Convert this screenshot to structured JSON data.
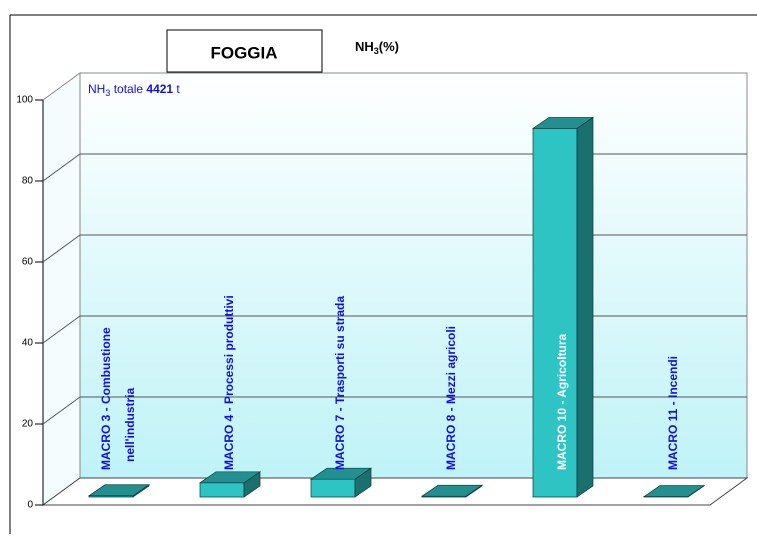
{
  "chart_data": {
    "type": "bar3d",
    "title": "FOGGIA",
    "unit_label": {
      "main": "NH",
      "sub": "3",
      "rest": "(%)"
    },
    "annotation": {
      "main": "NH",
      "sub": "3",
      "middle": " totale ",
      "total": "4421",
      "rest": " t"
    },
    "categories": [
      "MACRO 3 - Combustione\nnell'industria",
      "MACRO 4 - Processi produttivi",
      "MACRO 7 - Trasporti su strada",
      "MACRO 8 - Mezzi agricoli",
      "MACRO 10 - Agricoltura",
      "MACRO 11 - Incendi"
    ],
    "values": [
      0.3,
      3.5,
      4.4,
      0.2,
      91,
      0.1
    ],
    "color": "#2ec4c4",
    "ylim": [
      0,
      100
    ],
    "yticks": [
      0,
      20,
      40,
      60,
      80,
      100
    ],
    "grid": true
  }
}
